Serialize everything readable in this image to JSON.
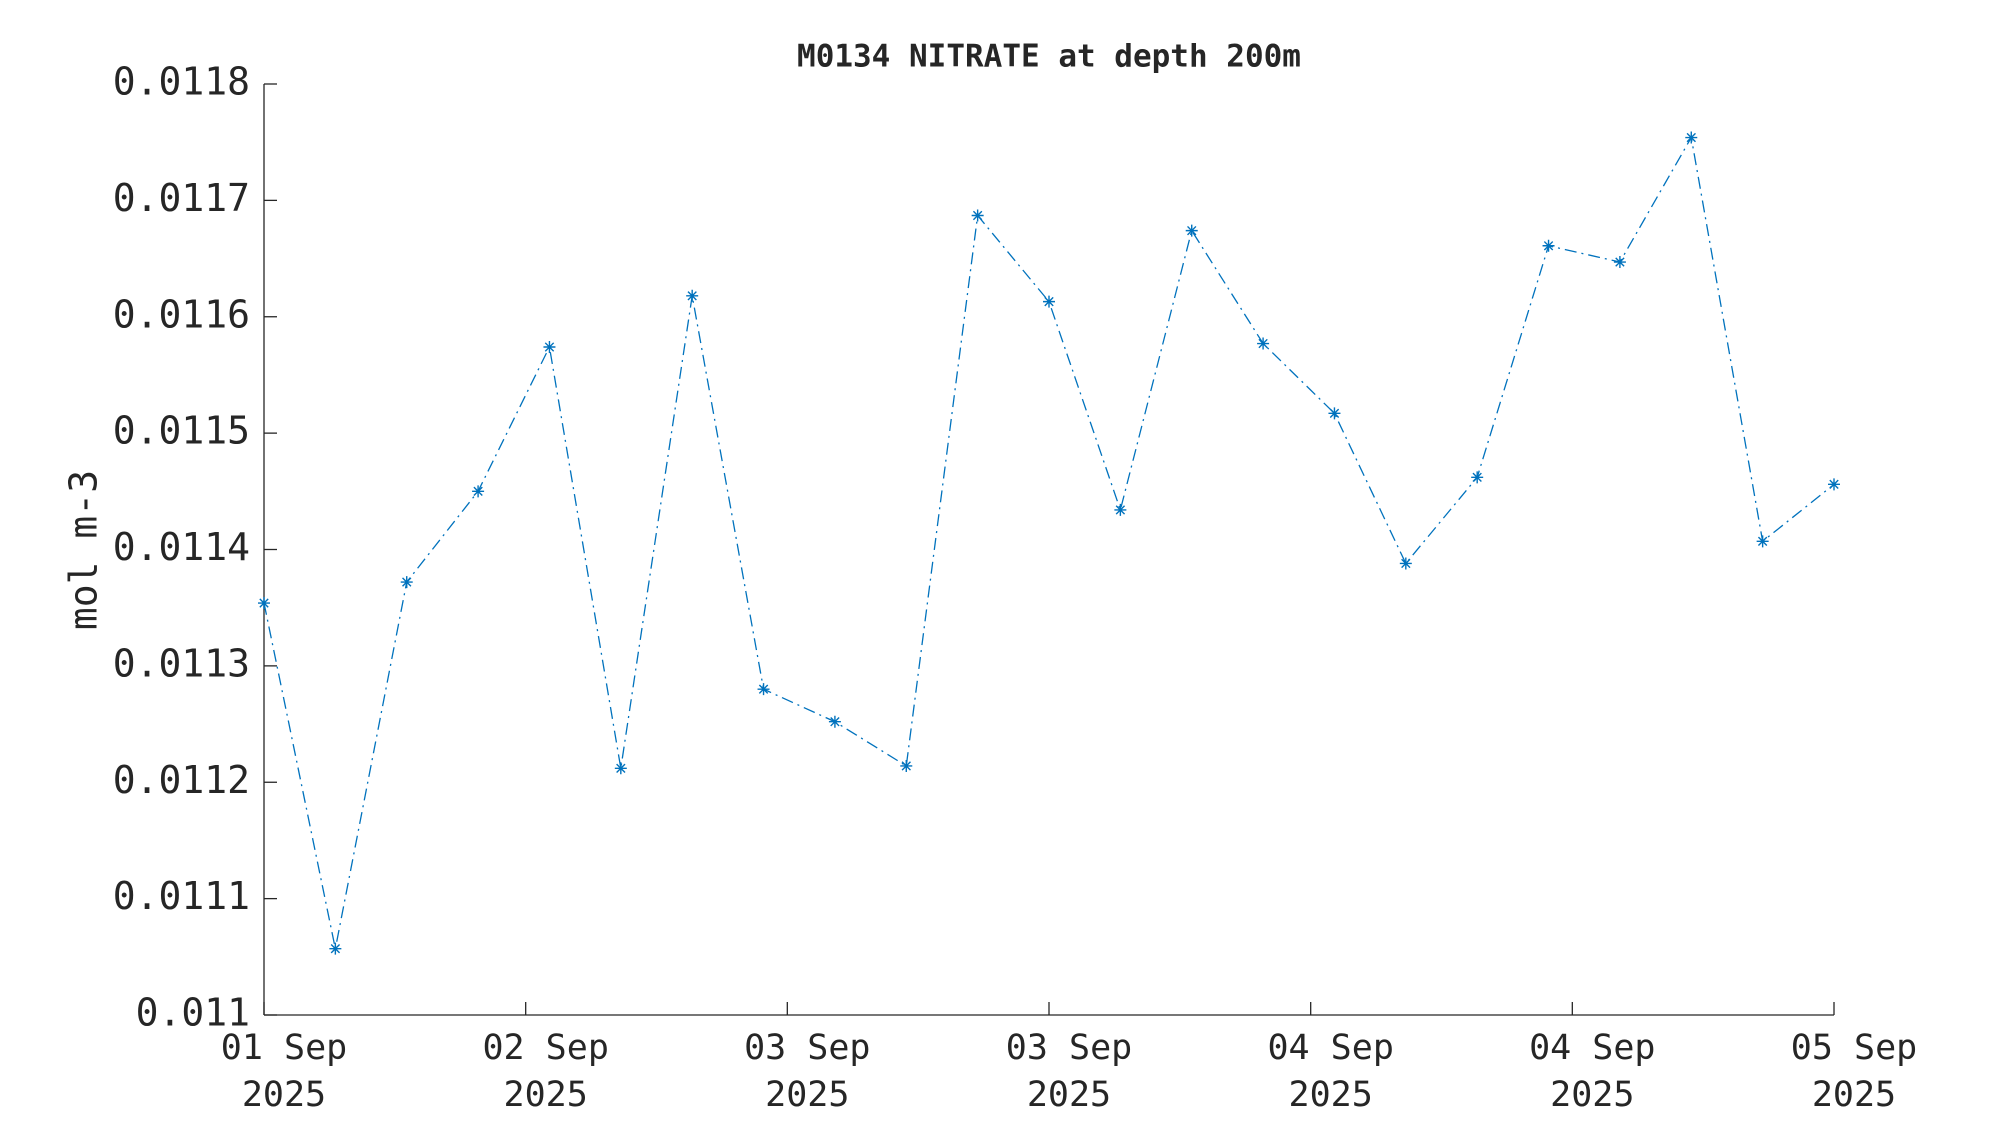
{
  "chart_data": {
    "type": "line",
    "title": "M0134 NITRATE at depth 200m",
    "ylabel": "mol m-3",
    "x": [
      0,
      1,
      2,
      3,
      4,
      5,
      6,
      7,
      8,
      9,
      10,
      11,
      12,
      13,
      14,
      15,
      16,
      17,
      18,
      19,
      20,
      21,
      22
    ],
    "series": [
      {
        "name": "M0134 NITRATE",
        "color": "#0072bd",
        "values": [
          0.011354,
          0.011057,
          0.011372,
          0.01145,
          0.011574,
          0.011212,
          0.011618,
          0.01128,
          0.011252,
          0.011214,
          0.011687,
          0.011613,
          0.011434,
          0.011674,
          0.011577,
          0.011517,
          0.011388,
          0.011462,
          0.011661,
          0.011647,
          0.011754,
          0.011407,
          0.011456
        ]
      }
    ],
    "xlim": [
      0,
      22
    ],
    "xticks": [
      {
        "value": 0,
        "label": "01 Sep\n2025"
      },
      {
        "value": 3.667,
        "label": "02 Sep\n2025"
      },
      {
        "value": 7.333,
        "label": "03 Sep\n2025"
      },
      {
        "value": 11,
        "label": "03 Sep\n2025"
      },
      {
        "value": 14.667,
        "label": "04 Sep\n2025"
      },
      {
        "value": 18.333,
        "label": "04 Sep\n2025"
      },
      {
        "value": 22,
        "label": "05 Sep\n2025"
      }
    ],
    "ylim": [
      0.011,
      0.0118
    ],
    "yticks": [
      0.011,
      0.0111,
      0.0112,
      0.0113,
      0.0114,
      0.0115,
      0.0116,
      0.0117,
      0.0118
    ],
    "grid": false
  }
}
